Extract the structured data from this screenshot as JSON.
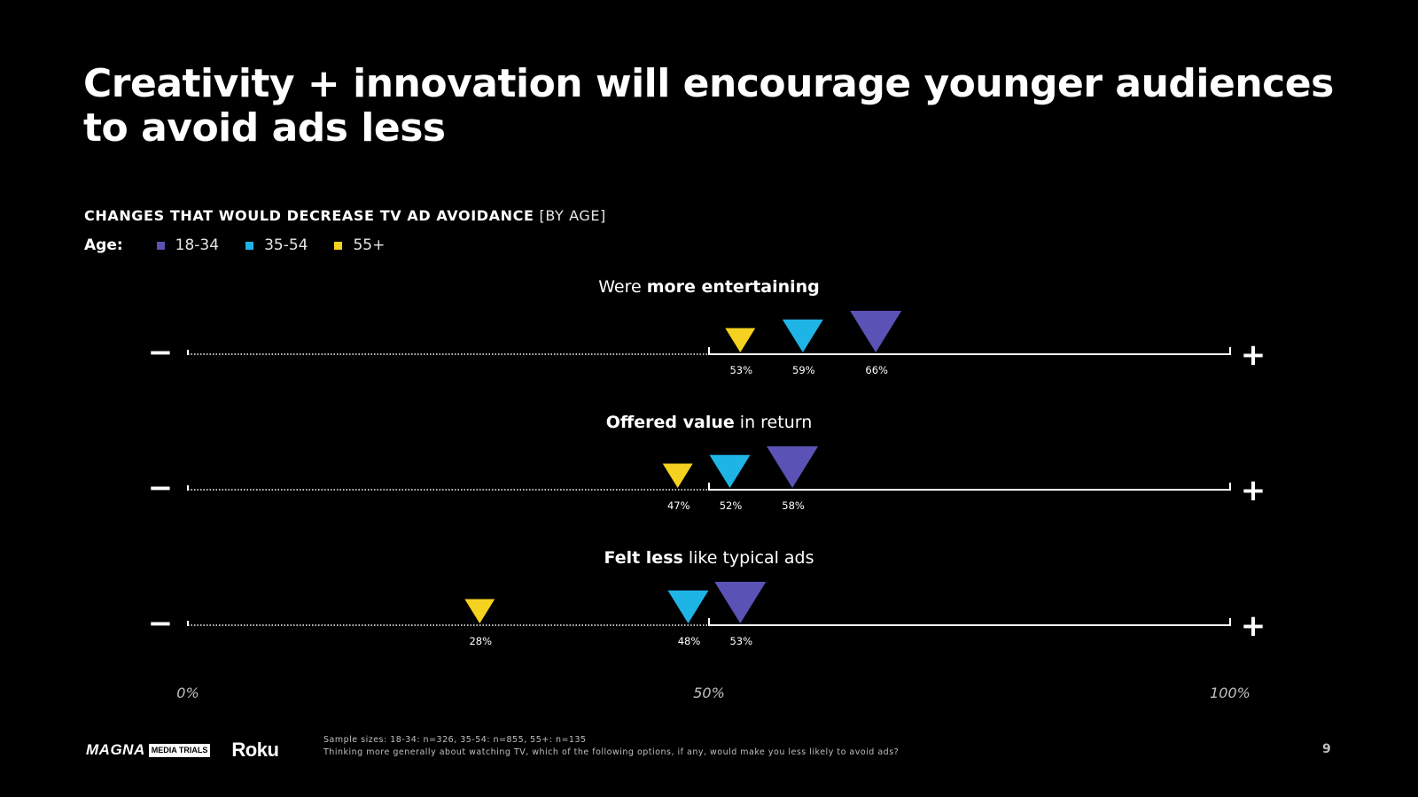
{
  "slide": {
    "title": "Creativity + innovation will encourage younger audiences to avoid ads less",
    "subtitle_strong": "CHANGES THAT WOULD DECREASE TV AD AVOIDANCE",
    "subtitle_light": "[BY AGE]",
    "legend": {
      "label": "Age:",
      "items": [
        {
          "label": "18-34",
          "color": "#5b52b5"
        },
        {
          "label": "35-54",
          "color": "#1fb4e6"
        },
        {
          "label": "55+",
          "color": "#f5d21f"
        }
      ]
    },
    "footer": {
      "logo_magna": "MAGNA",
      "logo_media_trials": "MEDIA TRIALS",
      "logo_roku": "Roku",
      "sample_sizes": "Sample sizes: 18-34: n=326, 35-54: n=855, 55+: n=135",
      "question": "Thinking more generally about watching TV, which of the following options, if any, would make you less likely to avoid ads?",
      "page_number": "9"
    }
  },
  "chart_data": {
    "type": "scatter",
    "title": "CHANGES THAT WOULD DECREASE TV AD AVOIDANCE [BY AGE]",
    "xlim": [
      0,
      100
    ],
    "x_unit": "%",
    "axis_ticks": [
      "0%",
      "50%",
      "100%"
    ],
    "scale_minus_symbol": "−",
    "scale_plus_symbol": "+",
    "series": [
      {
        "name": "18-34",
        "color": "#5b52b5"
      },
      {
        "name": "35-54",
        "color": "#1fb4e6"
      },
      {
        "name": "55+",
        "color": "#f5d21f"
      }
    ],
    "rows": [
      {
        "label_parts": [
          {
            "text": "Were ",
            "bold": false
          },
          {
            "text": "more entertaining",
            "bold": true
          }
        ],
        "values": {
          "18-34": 66,
          "35-54": 59,
          "55+": 53
        },
        "value_labels": {
          "18-34": "66%",
          "35-54": "59%",
          "55+": "53%"
        }
      },
      {
        "label_parts": [
          {
            "text": "Offered value",
            "bold": true
          },
          {
            "text": " in return",
            "bold": false
          }
        ],
        "values": {
          "18-34": 58,
          "35-54": 52,
          "55+": 47
        },
        "value_labels": {
          "18-34": "58%",
          "35-54": "52%",
          "55+": "47%"
        }
      },
      {
        "label_parts": [
          {
            "text": "Felt less",
            "bold": true
          },
          {
            "text": " like typical ads",
            "bold": false
          }
        ],
        "values": {
          "18-34": 53,
          "35-54": 48,
          "55+": 28
        },
        "value_labels": {
          "18-34": "53%",
          "35-54": "48%",
          "55+": "28%"
        }
      }
    ]
  }
}
